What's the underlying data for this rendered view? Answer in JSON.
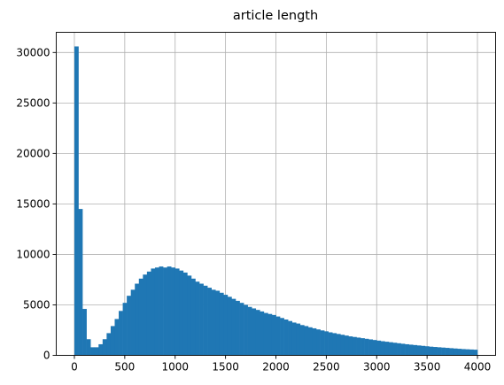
{
  "chart_data": {
    "type": "histogram",
    "title": "article length",
    "xlabel": "",
    "ylabel": "",
    "xlim": [
      -180,
      4180
    ],
    "ylim": [
      0,
      32000
    ],
    "xticks": [
      0,
      500,
      1000,
      1500,
      2000,
      2500,
      3000,
      3500,
      4000
    ],
    "yticks": [
      0,
      5000,
      10000,
      15000,
      20000,
      25000,
      30000
    ],
    "grid": true,
    "legend": "none",
    "bar_color": "#1f77b4",
    "bin_start": 0,
    "bin_width": 40,
    "values": [
      30600,
      14500,
      4600,
      1600,
      800,
      800,
      1100,
      1600,
      2200,
      2900,
      3600,
      4400,
      5200,
      5900,
      6500,
      7100,
      7600,
      8000,
      8300,
      8600,
      8700,
      8800,
      8700,
      8800,
      8700,
      8600,
      8400,
      8200,
      7900,
      7600,
      7300,
      7100,
      6900,
      6700,
      6500,
      6400,
      6200,
      6000,
      5800,
      5600,
      5400,
      5200,
      5000,
      4800,
      4650,
      4500,
      4350,
      4200,
      4100,
      4000,
      3850,
      3700,
      3550,
      3400,
      3250,
      3150,
      3000,
      2900,
      2780,
      2680,
      2570,
      2470,
      2380,
      2280,
      2200,
      2120,
      2040,
      1960,
      1880,
      1820,
      1760,
      1700,
      1640,
      1580,
      1520,
      1460,
      1400,
      1350,
      1300,
      1250,
      1200,
      1150,
      1100,
      1060,
      1020,
      980,
      940,
      900,
      860,
      830,
      800,
      770,
      740,
      710,
      680,
      650,
      620,
      600,
      580,
      560
    ]
  }
}
